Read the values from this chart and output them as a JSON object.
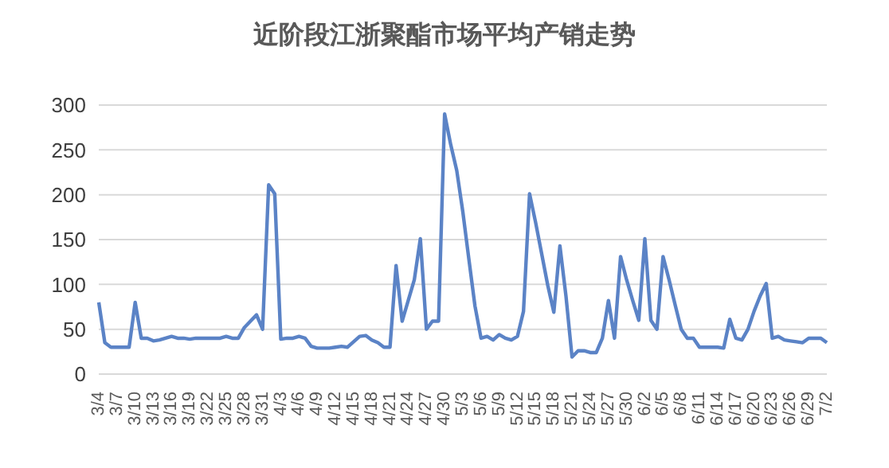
{
  "chart_data": {
    "type": "line",
    "title": "近阶段江浙聚酯市场平均产销走势",
    "categories": [
      "3/4",
      null,
      null,
      "3/7",
      null,
      null,
      "3/10",
      null,
      null,
      "3/13",
      null,
      null,
      "3/16",
      null,
      null,
      "3/19",
      null,
      null,
      "3/22",
      null,
      null,
      "3/25",
      null,
      null,
      "3/28",
      null,
      null,
      "3/31",
      null,
      null,
      "4/3",
      null,
      null,
      "4/6",
      null,
      null,
      "4/9",
      null,
      null,
      "4/12",
      null,
      null,
      "4/15",
      null,
      null,
      "4/18",
      null,
      null,
      "4/21",
      null,
      null,
      "4/24",
      null,
      null,
      "4/27",
      null,
      null,
      "4/30",
      null,
      null,
      "5/3",
      null,
      null,
      "5/6",
      null,
      null,
      "5/9",
      null,
      null,
      "5/12",
      null,
      null,
      "5/15",
      null,
      null,
      "5/18",
      null,
      null,
      "5/21",
      null,
      null,
      "5/24",
      null,
      null,
      "5/27",
      null,
      null,
      "5/30",
      null,
      null,
      "6/2",
      null,
      null,
      "6/5",
      null,
      null,
      "6/8",
      null,
      null,
      "6/11",
      null,
      null,
      "6/14",
      null,
      null,
      "6/17",
      null,
      null,
      "6/20",
      null,
      null,
      "6/23",
      null,
      null,
      "6/26",
      null,
      null,
      "6/29",
      null,
      null,
      "7/2"
    ],
    "series": [
      {
        "color": "#5b83c6",
        "values": [
          80,
          35,
          30,
          30,
          30,
          30,
          80,
          40,
          40,
          37,
          38,
          40,
          42,
          40,
          40,
          39,
          40,
          40,
          40,
          40,
          40,
          42,
          40,
          40,
          52,
          59,
          66,
          50,
          211,
          201,
          39,
          40,
          40,
          42,
          40,
          31,
          29,
          29,
          29,
          30,
          31,
          30,
          36,
          42,
          43,
          38,
          35,
          30,
          30,
          121,
          59,
          82,
          105,
          151,
          50,
          59,
          59,
          290,
          256,
          227,
          181,
          128,
          76,
          40,
          42,
          38,
          44,
          40,
          38,
          42,
          70,
          201,
          169,
          134,
          99,
          69,
          143,
          87,
          19,
          26,
          26,
          24,
          24,
          40,
          82,
          40,
          131,
          105,
          82,
          60,
          151,
          60,
          50,
          131,
          105,
          77,
          50,
          40,
          40,
          30,
          30,
          30,
          30,
          29,
          61,
          40,
          38,
          50,
          70,
          87,
          101,
          40,
          42,
          38,
          37,
          36,
          35,
          40,
          40,
          40,
          35
        ]
      }
    ],
    "ylim": [
      0,
      300
    ],
    "yticks": [
      0,
      50,
      100,
      150,
      200,
      250,
      300
    ],
    "grid": "y",
    "marker": "none",
    "line_style": "solid",
    "legend": false
  }
}
